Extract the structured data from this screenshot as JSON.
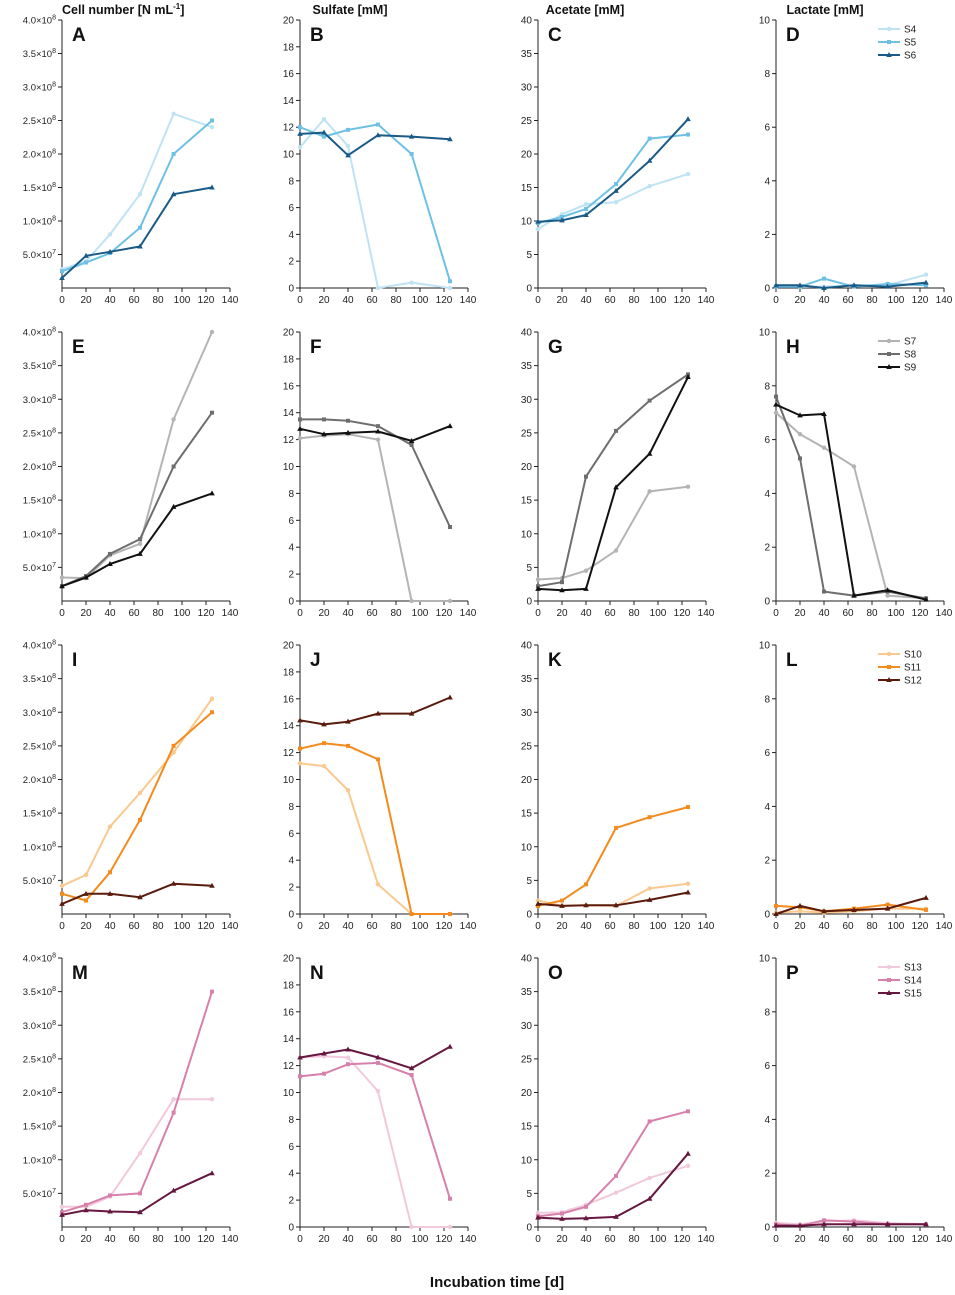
{
  "figure": {
    "x_axis_title": "Incubation time [d]",
    "column_titles": [
      {
        "text": "Cell number [N mL",
        "sup": "-1",
        "close": "]"
      },
      {
        "text": "Sulfate [mM]"
      },
      {
        "text": "Acetate [mM]"
      },
      {
        "text": "Lactate [mM]"
      }
    ]
  },
  "axes": {
    "x_ticks": [
      0,
      20,
      40,
      60,
      80,
      100,
      120,
      140
    ],
    "cell": {
      "ylim": [
        0,
        400000000
      ],
      "ticks": [
        {
          "value": 50000000,
          "mant": "5.0×10",
          "exp": "7"
        },
        {
          "value": 100000000,
          "mant": "1.0×10",
          "exp": "8"
        },
        {
          "value": 150000000,
          "mant": "1.5×10",
          "exp": "8"
        },
        {
          "value": 200000000,
          "mant": "2.0×10",
          "exp": "8"
        },
        {
          "value": 250000000,
          "mant": "2.5×10",
          "exp": "8"
        },
        {
          "value": 300000000,
          "mant": "3.0×10",
          "exp": "8"
        },
        {
          "value": 350000000,
          "mant": "3.5×10",
          "exp": "8"
        },
        {
          "value": 400000000,
          "mant": "4.0×10",
          "exp": "8"
        }
      ]
    },
    "sulfate": {
      "ylim": [
        0,
        20
      ],
      "ticks": [
        0,
        2,
        4,
        6,
        8,
        10,
        12,
        14,
        16,
        18,
        20
      ]
    },
    "acetate": {
      "ylim": [
        0,
        40
      ],
      "ticks": [
        0,
        5,
        10,
        15,
        20,
        25,
        30,
        35,
        40
      ]
    },
    "lactate": {
      "ylim": [
        0,
        10
      ],
      "ticks": [
        0,
        2,
        4,
        6,
        8,
        10
      ]
    }
  },
  "rows": [
    {
      "colors": [
        "#bfe3f2",
        "#6ec1e4",
        "#1a5a86"
      ],
      "legend": [
        "S4",
        "S5",
        "S6"
      ]
    },
    {
      "colors": [
        "#b4b4b4",
        "#6e6e6e",
        "#111111"
      ],
      "legend": [
        "S7",
        "S8",
        "S9"
      ]
    },
    {
      "colors": [
        "#f9c98f",
        "#f28c1e",
        "#5a1a0c"
      ],
      "legend": [
        "S10",
        "S11",
        "S12"
      ]
    },
    {
      "colors": [
        "#f2c9dc",
        "#d880ac",
        "#66173f"
      ],
      "legend": [
        "S13",
        "S14",
        "S15"
      ]
    }
  ],
  "chart_data": [
    {
      "panel": "A",
      "type": "line",
      "ylabel": "Cell number [N mL-1]",
      "x": [
        0,
        20,
        40,
        65,
        93,
        125
      ],
      "series": [
        {
          "name": "S4",
          "values": [
            28000000,
            40000000,
            80000000,
            140000000,
            260000000,
            240000000
          ]
        },
        {
          "name": "S5",
          "values": [
            25000000,
            38000000,
            52000000,
            90000000,
            200000000,
            250000000
          ]
        },
        {
          "name": "S6",
          "values": [
            15000000,
            48000000,
            54000000,
            62000000,
            140000000,
            150000000
          ]
        }
      ]
    },
    {
      "panel": "B",
      "type": "line",
      "ylabel": "Sulfate [mM]",
      "x": [
        0,
        20,
        40,
        65,
        93,
        125
      ],
      "series": [
        {
          "name": "S4",
          "values": [
            10.5,
            12.6,
            10.6,
            0.0,
            0.4,
            0.0
          ]
        },
        {
          "name": "S5",
          "values": [
            12.0,
            11.3,
            11.8,
            12.2,
            10.0,
            0.5
          ]
        },
        {
          "name": "S6",
          "values": [
            11.5,
            11.6,
            9.9,
            11.4,
            11.3,
            11.1
          ]
        }
      ]
    },
    {
      "panel": "C",
      "type": "line",
      "ylabel": "Acetate [mM]",
      "x": [
        0,
        20,
        40,
        65,
        93,
        125
      ],
      "series": [
        {
          "name": "S4",
          "values": [
            8.8,
            11.0,
            12.5,
            12.8,
            15.2,
            17.0
          ]
        },
        {
          "name": "S5",
          "values": [
            9.7,
            10.6,
            11.8,
            15.5,
            22.3,
            22.9
          ]
        },
        {
          "name": "S6",
          "values": [
            9.9,
            10.1,
            10.9,
            14.5,
            19.0,
            25.2
          ]
        }
      ]
    },
    {
      "panel": "D",
      "type": "line",
      "ylabel": "Lactate [mM]",
      "x": [
        0,
        20,
        40,
        65,
        93,
        125
      ],
      "series": [
        {
          "name": "S4",
          "values": [
            0.1,
            0.05,
            0.05,
            0.1,
            0.1,
            0.5
          ]
        },
        {
          "name": "S5",
          "values": [
            0.05,
            0.05,
            0.35,
            0.05,
            0.15,
            0.1
          ]
        },
        {
          "name": "S6",
          "values": [
            0.1,
            0.1,
            0.0,
            0.1,
            0.05,
            0.2
          ]
        }
      ]
    },
    {
      "panel": "E",
      "type": "line",
      "ylabel": "Cell number [N mL-1]",
      "x": [
        0,
        20,
        40,
        65,
        93,
        125
      ],
      "series": [
        {
          "name": "S7",
          "values": [
            35000000,
            34000000,
            68000000,
            85000000,
            270000000,
            400000000
          ]
        },
        {
          "name": "S8",
          "values": [
            22000000,
            37000000,
            70000000,
            92000000,
            200000000,
            280000000
          ]
        },
        {
          "name": "S9",
          "values": [
            22000000,
            35000000,
            55000000,
            70000000,
            140000000,
            160000000
          ]
        }
      ]
    },
    {
      "panel": "F",
      "type": "line",
      "ylabel": "Sulfate [mM]",
      "x": [
        0,
        20,
        40,
        65,
        93,
        125
      ],
      "series": [
        {
          "name": "S7",
          "values": [
            12.1,
            12.3,
            12.4,
            12.0,
            0.0,
            0.0
          ]
        },
        {
          "name": "S8",
          "values": [
            13.5,
            13.5,
            13.4,
            13.0,
            11.6,
            5.5
          ]
        },
        {
          "name": "S9",
          "values": [
            12.8,
            12.4,
            12.5,
            12.6,
            11.9,
            13.0
          ]
        }
      ]
    },
    {
      "panel": "G",
      "type": "line",
      "ylabel": "Acetate [mM]",
      "x": [
        0,
        20,
        40,
        65,
        93,
        125
      ],
      "series": [
        {
          "name": "S7",
          "values": [
            3.2,
            3.4,
            4.5,
            7.5,
            16.3,
            17.0
          ]
        },
        {
          "name": "S8",
          "values": [
            2.2,
            2.8,
            18.5,
            25.3,
            29.8,
            33.7
          ]
        },
        {
          "name": "S9",
          "values": [
            1.8,
            1.6,
            1.8,
            16.9,
            21.9,
            33.3
          ]
        }
      ]
    },
    {
      "panel": "H",
      "type": "line",
      "ylabel": "Lactate [mM]",
      "x": [
        0,
        20,
        40,
        65,
        93,
        125
      ],
      "series": [
        {
          "name": "S7",
          "values": [
            7.0,
            6.2,
            5.7,
            5.0,
            0.2,
            0.1
          ]
        },
        {
          "name": "S8",
          "values": [
            7.6,
            5.3,
            0.35,
            0.2,
            0.35,
            0.1
          ]
        },
        {
          "name": "S9",
          "values": [
            7.3,
            6.9,
            6.95,
            0.2,
            0.4,
            0.05
          ]
        }
      ]
    },
    {
      "panel": "I",
      "type": "line",
      "ylabel": "Cell number [N mL-1]",
      "x": [
        0,
        20,
        40,
        65,
        93,
        125
      ],
      "series": [
        {
          "name": "S10",
          "values": [
            42000000,
            58000000,
            130000000,
            180000000,
            240000000,
            320000000
          ]
        },
        {
          "name": "S11",
          "values": [
            30000000,
            20000000,
            62000000,
            140000000,
            250000000,
            300000000
          ]
        },
        {
          "name": "S12",
          "values": [
            15000000,
            30000000,
            30000000,
            25000000,
            45000000,
            42000000
          ]
        }
      ]
    },
    {
      "panel": "J",
      "type": "line",
      "ylabel": "Sulfate [mM]",
      "x": [
        0,
        20,
        40,
        65,
        93,
        125
      ],
      "series": [
        {
          "name": "S10",
          "values": [
            11.2,
            11.0,
            9.2,
            2.2,
            0.0,
            0.0
          ]
        },
        {
          "name": "S11",
          "values": [
            12.3,
            12.7,
            12.5,
            11.5,
            0.0,
            0.0
          ]
        },
        {
          "name": "S12",
          "values": [
            14.4,
            14.1,
            14.3,
            14.9,
            14.9,
            16.1
          ]
        }
      ]
    },
    {
      "panel": "K",
      "type": "line",
      "ylabel": "Acetate [mM]",
      "x": [
        0,
        20,
        40,
        65,
        93,
        125
      ],
      "series": [
        {
          "name": "S10",
          "values": [
            2.0,
            1.2,
            1.3,
            1.2,
            3.8,
            4.5
          ]
        },
        {
          "name": "S11",
          "values": [
            1.2,
            2.0,
            4.4,
            12.8,
            14.4,
            15.9
          ]
        },
        {
          "name": "S12",
          "values": [
            1.5,
            1.2,
            1.3,
            1.3,
            2.1,
            3.2
          ]
        }
      ]
    },
    {
      "panel": "L",
      "type": "line",
      "ylabel": "Lactate [mM]",
      "x": [
        0,
        20,
        40,
        65,
        93,
        125
      ],
      "series": [
        {
          "name": "S10",
          "values": [
            0.05,
            0.1,
            0.05,
            0.1,
            0.2,
            0.2
          ]
        },
        {
          "name": "S11",
          "values": [
            0.3,
            0.25,
            0.1,
            0.2,
            0.35,
            0.15
          ]
        },
        {
          "name": "S12",
          "values": [
            0.0,
            0.3,
            0.1,
            0.15,
            0.2,
            0.6
          ]
        }
      ]
    },
    {
      "panel": "M",
      "type": "line",
      "ylabel": "Cell number [N mL-1]",
      "x": [
        0,
        20,
        40,
        65,
        93,
        125
      ],
      "series": [
        {
          "name": "S13",
          "values": [
            30000000,
            30000000,
            45000000,
            110000000,
            190000000,
            190000000
          ]
        },
        {
          "name": "S14",
          "values": [
            22000000,
            33000000,
            47000000,
            50000000,
            170000000,
            350000000
          ]
        },
        {
          "name": "S15",
          "values": [
            18000000,
            25000000,
            23000000,
            22000000,
            54000000,
            80000000
          ]
        }
      ]
    },
    {
      "panel": "N",
      "type": "line",
      "ylabel": "Sulfate [mM]",
      "x": [
        0,
        20,
        40,
        65,
        93,
        125
      ],
      "series": [
        {
          "name": "S13",
          "values": [
            12.6,
            12.7,
            12.6,
            10.1,
            0.0,
            0.0
          ]
        },
        {
          "name": "S14",
          "values": [
            11.2,
            11.4,
            12.1,
            12.2,
            11.3,
            2.1
          ]
        },
        {
          "name": "S15",
          "values": [
            12.6,
            12.9,
            13.2,
            12.6,
            11.8,
            13.4
          ]
        }
      ]
    },
    {
      "panel": "O",
      "type": "line",
      "ylabel": "Acetate [mM]",
      "x": [
        0,
        20,
        40,
        65,
        93,
        125
      ],
      "series": [
        {
          "name": "S13",
          "values": [
            2.1,
            2.2,
            3.3,
            5.1,
            7.3,
            9.1
          ]
        },
        {
          "name": "S14",
          "values": [
            1.6,
            2.0,
            3.0,
            7.6,
            15.7,
            17.2
          ]
        },
        {
          "name": "S15",
          "values": [
            1.4,
            1.2,
            1.3,
            1.5,
            4.2,
            10.9
          ]
        }
      ]
    },
    {
      "panel": "P",
      "type": "line",
      "ylabel": "Lactate [mM]",
      "x": [
        0,
        20,
        40,
        65,
        93,
        125
      ],
      "series": [
        {
          "name": "S13",
          "values": [
            0.15,
            0.1,
            0.2,
            0.25,
            0.15,
            0.1
          ]
        },
        {
          "name": "S14",
          "values": [
            0.1,
            0.05,
            0.25,
            0.2,
            0.1,
            0.1
          ]
        },
        {
          "name": "S15",
          "values": [
            0.05,
            0.05,
            0.1,
            0.1,
            0.1,
            0.1
          ]
        }
      ]
    }
  ]
}
